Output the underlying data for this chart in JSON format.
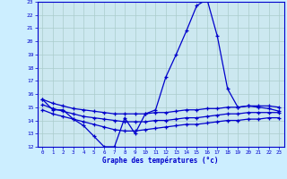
{
  "bg_color": "#cceeff",
  "plot_bg_color": "#cce8f0",
  "line_color": "#0000cc",
  "grid_color": "#aacccc",
  "xlabel": "Graphe des températures (°c)",
  "hours": [
    0,
    1,
    2,
    3,
    4,
    5,
    6,
    7,
    8,
    9,
    10,
    11,
    12,
    13,
    14,
    15,
    16,
    17,
    18,
    19,
    20,
    21,
    22,
    23
  ],
  "temp_main": [
    15.6,
    14.8,
    14.8,
    14.1,
    13.6,
    12.8,
    12.0,
    12.0,
    14.2,
    13.0,
    14.5,
    14.8,
    17.3,
    19.0,
    20.8,
    22.7,
    23.2,
    20.4,
    16.4,
    15.0,
    15.1,
    15.0,
    14.9,
    14.7
  ],
  "temp_min": [
    14.8,
    14.5,
    14.3,
    14.1,
    13.9,
    13.7,
    13.5,
    13.3,
    13.2,
    13.2,
    13.3,
    13.4,
    13.5,
    13.6,
    13.7,
    13.7,
    13.8,
    13.9,
    14.0,
    14.0,
    14.1,
    14.1,
    14.2,
    14.2
  ],
  "temp_max": [
    15.6,
    15.3,
    15.1,
    14.9,
    14.8,
    14.7,
    14.6,
    14.5,
    14.5,
    14.5,
    14.5,
    14.6,
    14.6,
    14.7,
    14.8,
    14.8,
    14.9,
    14.9,
    15.0,
    15.0,
    15.1,
    15.1,
    15.1,
    15.0
  ],
  "temp_avg": [
    15.2,
    14.9,
    14.7,
    14.5,
    14.3,
    14.2,
    14.1,
    14.0,
    13.9,
    13.9,
    13.9,
    14.0,
    14.0,
    14.1,
    14.2,
    14.2,
    14.3,
    14.4,
    14.5,
    14.5,
    14.6,
    14.6,
    14.6,
    14.6
  ],
  "ylim": [
    12,
    23
  ],
  "yticks": [
    12,
    13,
    14,
    15,
    16,
    17,
    18,
    19,
    20,
    21,
    22,
    23
  ]
}
